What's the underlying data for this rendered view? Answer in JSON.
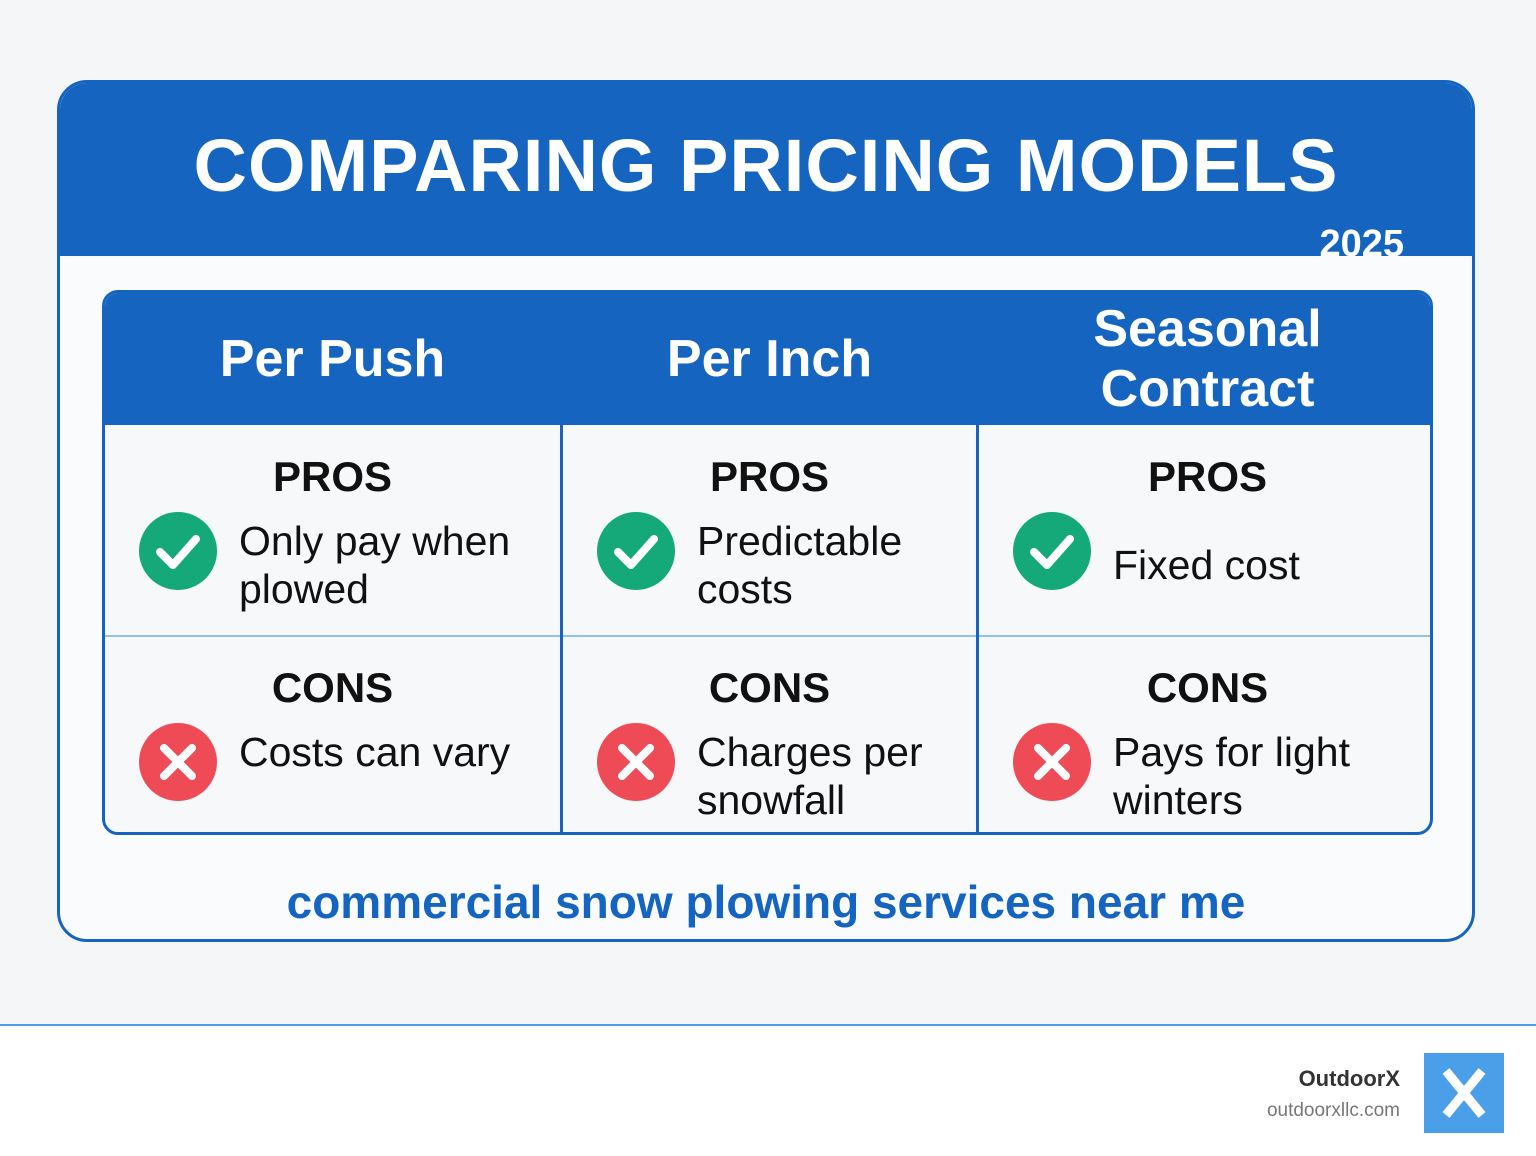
{
  "header": {
    "title": "COMPARING PRICING MODELS",
    "year": "2025"
  },
  "table": {
    "columns": [
      {
        "title": "Per Push",
        "pros_label": "PROS",
        "pros": "Only pay when plowed",
        "cons_label": "CONS",
        "cons": "Costs can vary"
      },
      {
        "title": "Per Inch",
        "pros_label": "PROS",
        "pros": "Predictable costs",
        "cons_label": "CONS",
        "cons": "Charges per snowfall"
      },
      {
        "title": "Seasonal Contract",
        "pros_label": "PROS",
        "pros": "Fixed cost",
        "cons_label": "CONS",
        "cons": "Pays for light winters"
      }
    ]
  },
  "caption": "commercial snow plowing services near me",
  "footer": {
    "brand": "OutdoorX",
    "url": "outdoorxllc.com"
  }
}
